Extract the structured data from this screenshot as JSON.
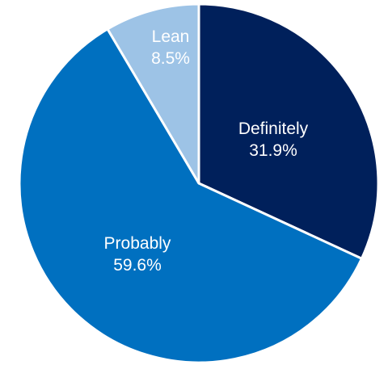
{
  "chart_data": {
    "type": "pie",
    "slices": [
      {
        "label": "Definitely",
        "value": 31.9,
        "value_label": "31.9%",
        "color": "#00205b"
      },
      {
        "label": "Probably",
        "value": 59.6,
        "value_label": "59.6%",
        "color": "#0070c0"
      },
      {
        "label": "Lean",
        "value": 8.5,
        "value_label": "8.5%",
        "color": "#9dc3e6"
      }
    ],
    "start": "12 o'clock",
    "direction": "clockwise",
    "separator_color": "#ffffff"
  }
}
